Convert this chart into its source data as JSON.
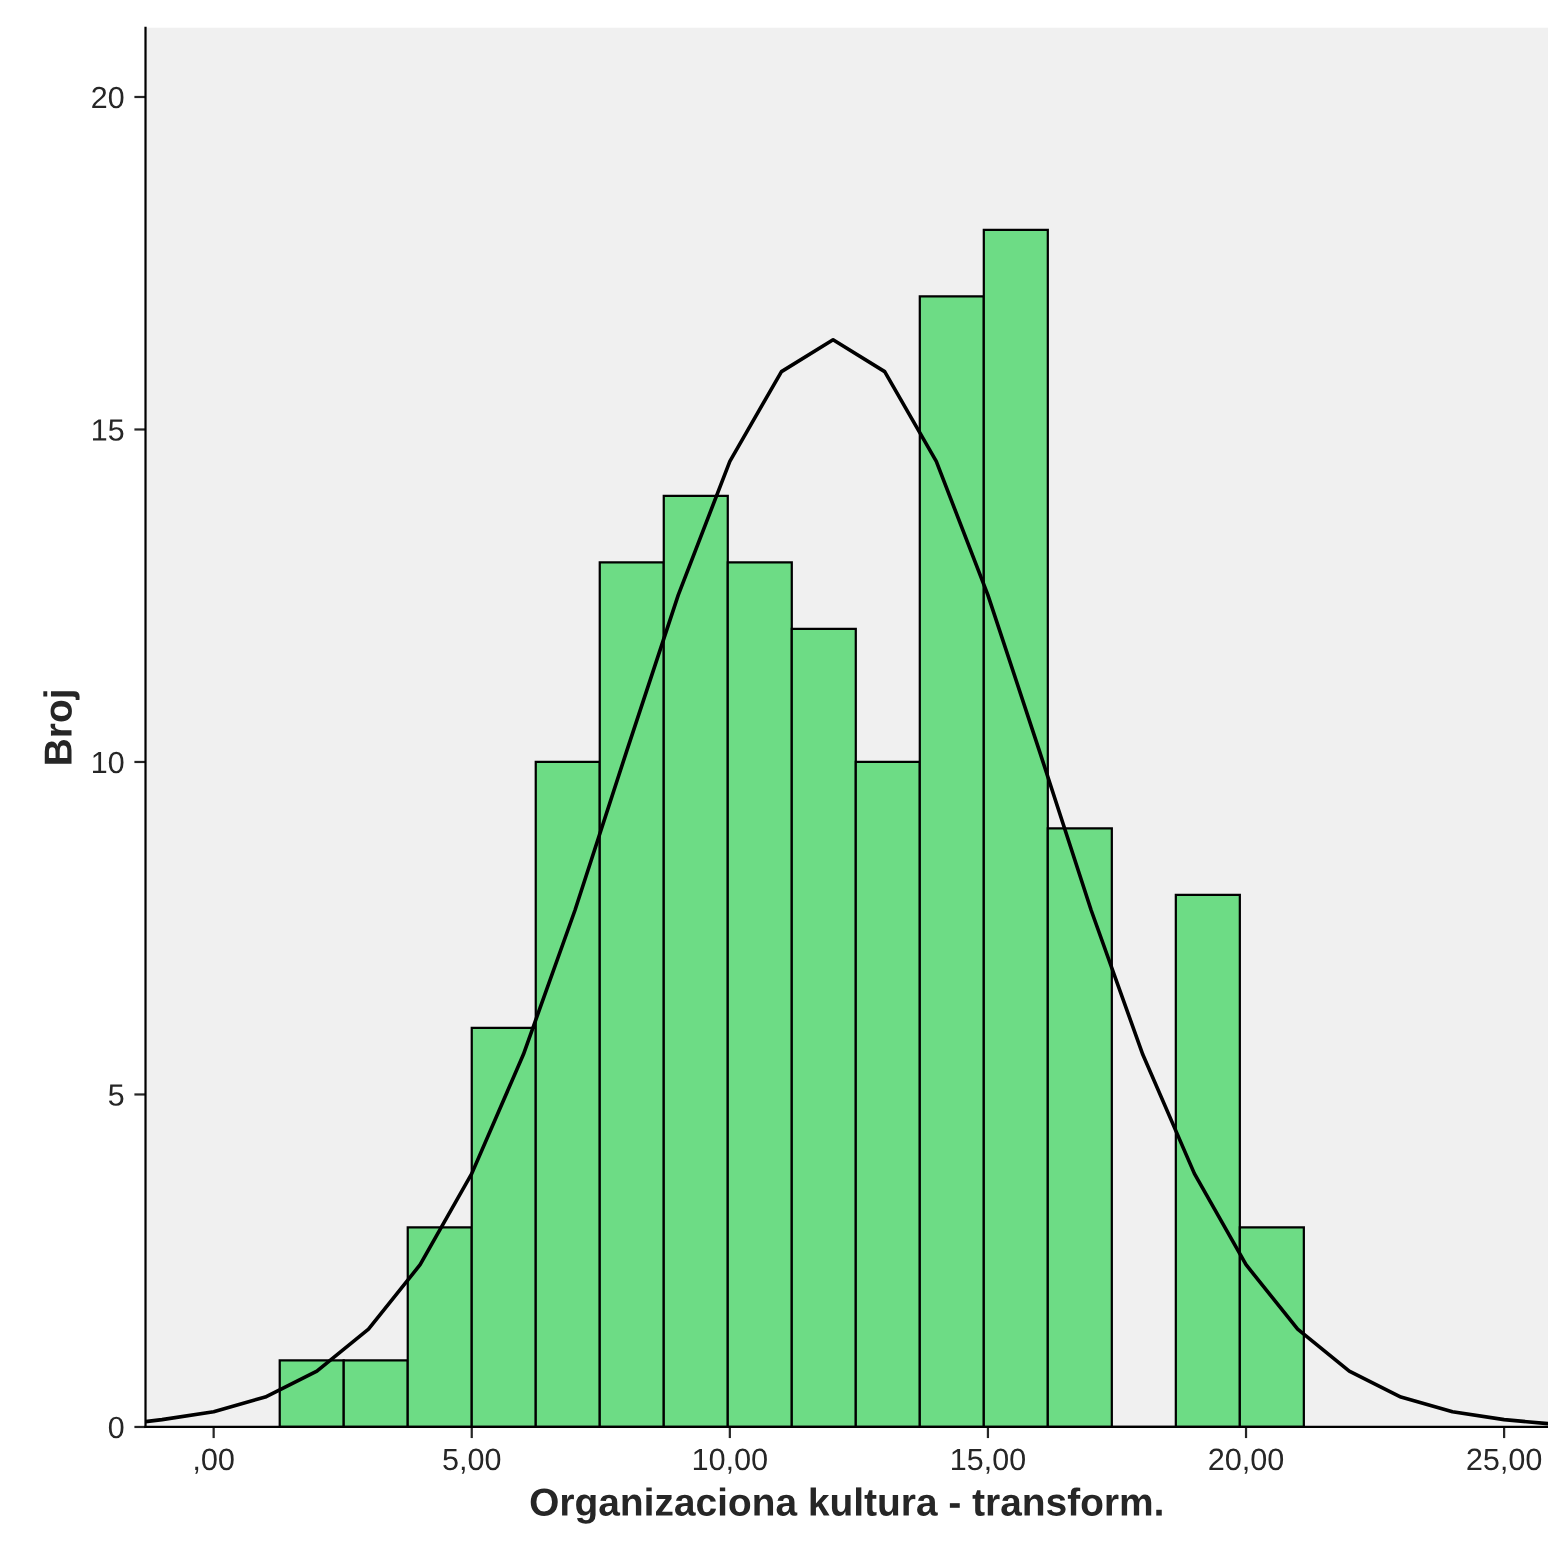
{
  "chart_data": {
    "type": "histogram",
    "xlabel": "Organizaciona kultura - transform.",
    "ylabel": "Broj",
    "xlim": [
      -1.32,
      25.85
    ],
    "ylim": [
      0,
      21.04
    ],
    "xticks": [
      {
        "value": 0,
        "label": ",00"
      },
      {
        "value": 5,
        "label": "5,00"
      },
      {
        "value": 10,
        "label": "10,00"
      },
      {
        "value": 15,
        "label": "15,00"
      },
      {
        "value": 20,
        "label": "20,00"
      },
      {
        "value": 25,
        "label": "25,00"
      }
    ],
    "yticks": [
      0,
      5,
      10,
      15,
      20
    ],
    "grid": false,
    "legend": false,
    "series": [
      {
        "type": "histogram",
        "color": "#6ddc85",
        "bins": [
          1.28,
          2.52,
          3.76,
          5.0,
          6.24,
          7.48,
          8.72,
          9.96,
          11.2,
          12.44,
          13.68,
          14.92,
          16.16,
          17.4,
          18.64,
          19.88,
          21.12
        ],
        "values": [
          1,
          1,
          3,
          6,
          10,
          13,
          14,
          13,
          12,
          10,
          17,
          18,
          9,
          0,
          8,
          3
        ]
      },
      {
        "type": "line",
        "color": "#000000",
        "x": [
          -1.32,
          -1,
          0,
          1,
          2,
          3,
          4,
          5,
          6,
          7,
          8,
          9,
          10,
          11,
          12,
          13,
          14,
          15,
          16,
          17,
          18,
          19,
          20,
          21,
          22,
          23,
          24,
          25,
          25.85
        ],
        "values": [
          0.08,
          0.11,
          0.23,
          0.45,
          0.84,
          1.47,
          2.44,
          3.81,
          5.6,
          7.77,
          10.16,
          12.51,
          14.52,
          15.87,
          16.35,
          15.87,
          14.52,
          12.51,
          10.16,
          7.77,
          5.6,
          3.81,
          2.44,
          1.47,
          0.84,
          0.45,
          0.23,
          0.11,
          0.05
        ]
      }
    ]
  }
}
